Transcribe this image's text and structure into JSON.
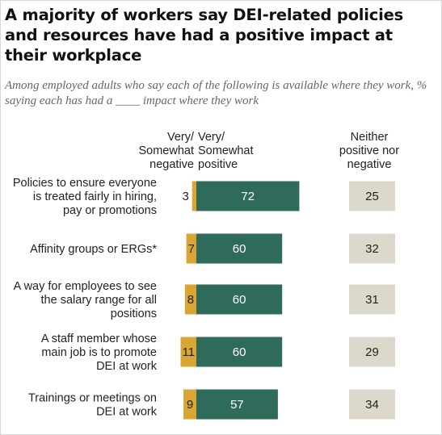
{
  "header": {
    "title": "A majority of workers say DEI-related policies and resources have had a positive impact at their workplace",
    "subtitle": "Among employed adults who say each of the following is available where they work, % saying each has had a ____ impact where they work"
  },
  "column_headers": {
    "negative": "Very/\nSomewhat\nnegative",
    "positive": "Very/\nSomewhat\npositive",
    "neither": "Neither\npositive nor\nnegative"
  },
  "colors": {
    "negative": "#d9a633",
    "positive": "#2f6b5a",
    "neither": "#dcd9cc",
    "positive_text": "#ffffff",
    "dark_text": "#222222"
  },
  "chart_data": {
    "type": "bar",
    "categories": [
      "Policies to ensure everyone is treated fairly in hiring, pay or promotions",
      "Affinity groups or ERGs*",
      "A way for employees to see the salary range for all positions",
      "A staff member whose main job is to promote DEI at work",
      "Trainings or meetings on DEI at work"
    ],
    "category_lines": [
      [
        "Policies to ensure everyone",
        "is treated fairly in hiring,",
        "pay or promotions"
      ],
      [
        "Affinity groups or ERGs*"
      ],
      [
        "A way for employees to see",
        "the salary range for all",
        "positions"
      ],
      [
        "A staff member whose",
        "main job is to promote",
        "DEI at work"
      ],
      [
        "Trainings or meetings on",
        "DEI at work"
      ]
    ],
    "series": [
      {
        "name": "Very/Somewhat negative",
        "values": [
          3,
          7,
          8,
          11,
          9
        ]
      },
      {
        "name": "Very/Somewhat positive",
        "values": [
          72,
          60,
          60,
          60,
          57
        ]
      },
      {
        "name": "Neither positive nor negative",
        "values": [
          25,
          32,
          31,
          29,
          34
        ]
      }
    ]
  }
}
